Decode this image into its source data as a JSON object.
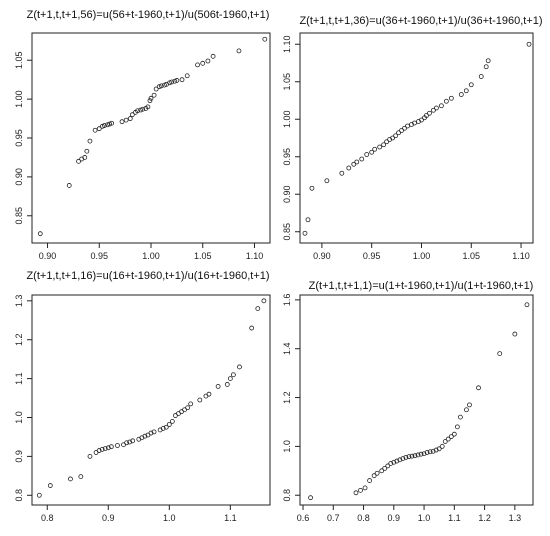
{
  "chart_data": [
    {
      "type": "scatter",
      "title": "Z(t+1,t,t+1,56)=u(56+t-1960,t+1)/u(506t-1960,t+1)",
      "xlabel": "",
      "ylabel": "",
      "xlim": [
        0.885,
        1.115
      ],
      "ylim": [
        0.815,
        1.085
      ],
      "xticks": [
        0.9,
        0.95,
        1.0,
        1.05,
        1.1
      ],
      "yticks": [
        0.85,
        0.9,
        0.95,
        1.0,
        1.05
      ],
      "xtick_labels": [
        "0.90",
        "0.95",
        "1.00",
        "1.05",
        "1.10"
      ],
      "ytick_labels": [
        "0.85",
        "0.90",
        "0.95",
        "1.00",
        "1.05"
      ],
      "x": [
        0.893,
        0.921,
        0.93,
        0.933,
        0.936,
        0.938,
        0.941,
        0.946,
        0.95,
        0.953,
        0.955,
        0.958,
        0.96,
        0.962,
        0.972,
        0.976,
        0.98,
        0.982,
        0.985,
        0.987,
        0.99,
        0.992,
        0.995,
        0.997,
        0.999,
        1.0,
        1.003,
        1.005,
        1.008,
        1.01,
        1.013,
        1.015,
        1.018,
        1.02,
        1.023,
        1.025,
        1.03,
        1.035,
        1.045,
        1.05,
        1.055,
        1.06,
        1.085,
        1.11
      ],
      "y": [
        0.827,
        0.889,
        0.92,
        0.923,
        0.925,
        0.933,
        0.946,
        0.96,
        0.962,
        0.965,
        0.966,
        0.967,
        0.968,
        0.969,
        0.971,
        0.973,
        0.975,
        0.98,
        0.983,
        0.985,
        0.986,
        0.987,
        0.988,
        0.99,
        0.998,
        1.001,
        1.005,
        1.013,
        1.016,
        1.017,
        1.018,
        1.019,
        1.021,
        1.022,
        1.023,
        1.024,
        1.025,
        1.03,
        1.044,
        1.046,
        1.049,
        1.055,
        1.062,
        1.077
      ]
    },
    {
      "type": "scatter",
      "title": "Z(t+1,t,t+1,36)=u(36+t-1960,t+1)/u(36+t-1960,t+1)",
      "xlabel": "",
      "ylabel": "",
      "xlim": [
        0.878,
        1.112
      ],
      "ylim": [
        0.835,
        1.115
      ],
      "xticks": [
        0.9,
        0.95,
        1.0,
        1.05,
        1.1
      ],
      "yticks": [
        0.85,
        0.9,
        0.95,
        1.0,
        1.05,
        1.1
      ],
      "xtick_labels": [
        "0.90",
        "0.95",
        "1.00",
        "1.05",
        "1.10"
      ],
      "ytick_labels": [
        "0.85",
        "0.90",
        "0.95",
        "1.00",
        "1.05",
        "1.10"
      ],
      "x": [
        0.883,
        0.886,
        0.89,
        0.905,
        0.92,
        0.927,
        0.932,
        0.935,
        0.94,
        0.945,
        0.95,
        0.953,
        0.958,
        0.962,
        0.965,
        0.968,
        0.971,
        0.974,
        0.977,
        0.98,
        0.983,
        0.986,
        0.99,
        0.993,
        0.997,
        1.0,
        1.003,
        1.005,
        1.008,
        1.012,
        1.015,
        1.02,
        1.025,
        1.03,
        1.04,
        1.045,
        1.05,
        1.06,
        1.065,
        1.067,
        1.108
      ],
      "y": [
        0.848,
        0.866,
        0.908,
        0.918,
        0.928,
        0.935,
        0.94,
        0.943,
        0.947,
        0.953,
        0.956,
        0.96,
        0.963,
        0.966,
        0.97,
        0.973,
        0.975,
        0.978,
        0.982,
        0.985,
        0.988,
        0.991,
        0.993,
        0.995,
        0.997,
        0.999,
        1.002,
        1.005,
        1.008,
        1.012,
        1.015,
        1.018,
        1.024,
        1.028,
        1.033,
        1.038,
        1.046,
        1.057,
        1.07,
        1.078,
        1.1
      ]
    },
    {
      "type": "scatter",
      "title": "Z(t+1,t,t+1,16)=u(16+t-1960,t+1)/u(16+t-1960,t+1)",
      "xlabel": "",
      "ylabel": "",
      "xlim": [
        0.775,
        1.165
      ],
      "ylim": [
        0.775,
        1.315
      ],
      "xticks": [
        0.8,
        0.9,
        1.0,
        1.1
      ],
      "yticks": [
        0.8,
        0.9,
        1.0,
        1.1,
        1.2,
        1.3
      ],
      "xtick_labels": [
        "0.8",
        "0.9",
        "1.0",
        "1.1"
      ],
      "ytick_labels": [
        "0.8",
        "0.9",
        "1.0",
        "1.1",
        "1.2",
        "1.3"
      ],
      "x": [
        0.787,
        0.805,
        0.838,
        0.855,
        0.87,
        0.88,
        0.885,
        0.89,
        0.895,
        0.9,
        0.905,
        0.915,
        0.925,
        0.93,
        0.935,
        0.94,
        0.95,
        0.955,
        0.96,
        0.965,
        0.97,
        0.975,
        0.985,
        0.99,
        0.995,
        1.0,
        1.005,
        1.01,
        1.015,
        1.02,
        1.025,
        1.03,
        1.035,
        1.05,
        1.06,
        1.065,
        1.08,
        1.095,
        1.1,
        1.105,
        1.115,
        1.135,
        1.145,
        1.155
      ],
      "y": [
        0.8,
        0.825,
        0.842,
        0.848,
        0.9,
        0.91,
        0.915,
        0.918,
        0.92,
        0.922,
        0.925,
        0.928,
        0.93,
        0.935,
        0.937,
        0.94,
        0.944,
        0.948,
        0.952,
        0.955,
        0.96,
        0.963,
        0.968,
        0.972,
        0.975,
        0.982,
        0.99,
        1.005,
        1.01,
        1.015,
        1.02,
        1.025,
        1.035,
        1.045,
        1.055,
        1.06,
        1.08,
        1.085,
        1.1,
        1.11,
        1.13,
        1.23,
        1.28,
        1.3
      ]
    },
    {
      "type": "scatter",
      "title": "Z(t+1,t,t+1,1)=u(1+t-1960,t+1)/u(1+t-1960,t+1)",
      "xlabel": "",
      "ylabel": "",
      "xlim": [
        0.59,
        1.36
      ],
      "ylim": [
        0.76,
        1.62
      ],
      "xticks": [
        0.6,
        0.7,
        0.8,
        0.9,
        1.0,
        1.1,
        1.2,
        1.3
      ],
      "yticks": [
        0.8,
        1.0,
        1.2,
        1.4,
        1.6
      ],
      "xtick_labels": [
        "0.6",
        "0.7",
        "0.8",
        "0.9",
        "1.0",
        "1.1",
        "1.2",
        "1.3"
      ],
      "ytick_labels": [
        "0.8",
        "1.0",
        "1.2",
        "1.4",
        "1.6"
      ],
      "x": [
        0.625,
        0.775,
        0.79,
        0.805,
        0.82,
        0.835,
        0.845,
        0.86,
        0.87,
        0.88,
        0.89,
        0.9,
        0.91,
        0.92,
        0.93,
        0.94,
        0.95,
        0.96,
        0.97,
        0.98,
        0.99,
        1.0,
        1.01,
        1.02,
        1.03,
        1.04,
        1.05,
        1.06,
        1.07,
        1.08,
        1.09,
        1.1,
        1.11,
        1.12,
        1.14,
        1.15,
        1.18,
        1.25,
        1.3,
        1.34
      ],
      "y": [
        0.79,
        0.81,
        0.82,
        0.83,
        0.86,
        0.88,
        0.89,
        0.9,
        0.91,
        0.92,
        0.93,
        0.935,
        0.94,
        0.945,
        0.95,
        0.955,
        0.958,
        0.96,
        0.962,
        0.965,
        0.968,
        0.97,
        0.975,
        0.978,
        0.98,
        0.985,
        0.99,
        1.0,
        1.02,
        1.03,
        1.04,
        1.05,
        1.08,
        1.12,
        1.15,
        1.17,
        1.24,
        1.38,
        1.46,
        1.58
      ]
    }
  ]
}
